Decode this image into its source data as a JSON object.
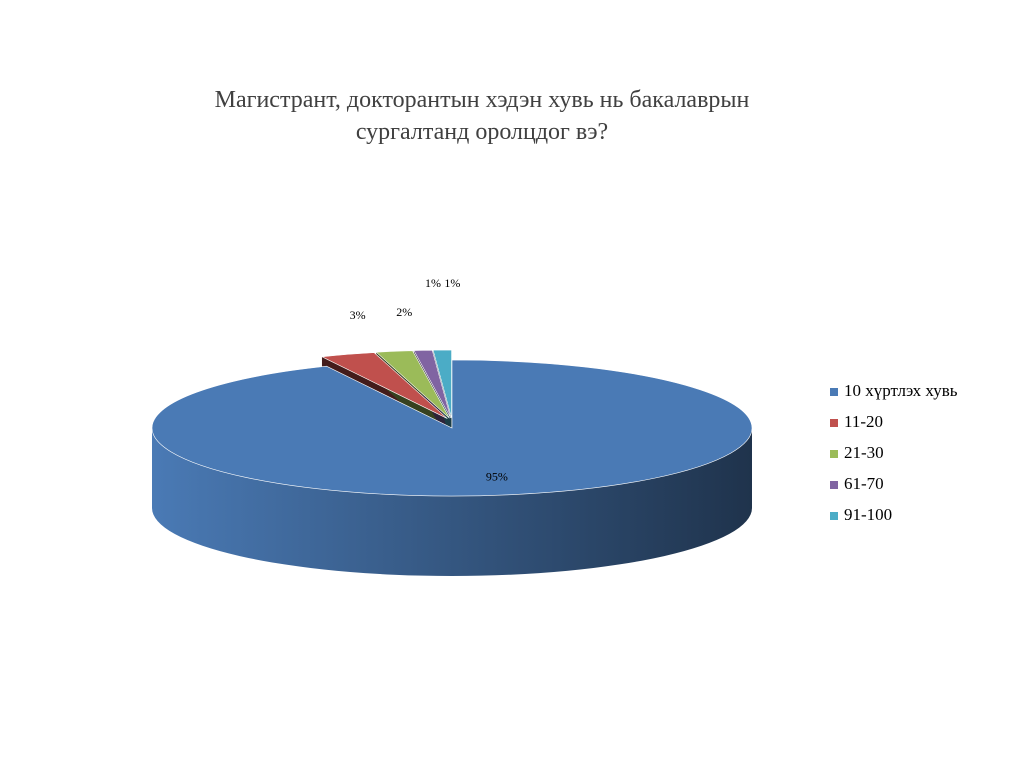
{
  "chart_data": {
    "type": "pie",
    "title": "Магистрант, докторантын хэдэн хувь нь бакалаврын сургалтанд оролцдог вэ?",
    "categories": [
      "10 хүртлэх хувь",
      "11-20",
      "21-30",
      "61-70",
      "91-100"
    ],
    "values": [
      95,
      3,
      2,
      1,
      1
    ],
    "value_labels": [
      "95%",
      "3%",
      "2%",
      "1%",
      "1%"
    ],
    "colors": [
      "#4a7ab5",
      "#c0504d",
      "#9bbb59",
      "#8064a2",
      "#4bacc6"
    ],
    "legend": "right"
  }
}
